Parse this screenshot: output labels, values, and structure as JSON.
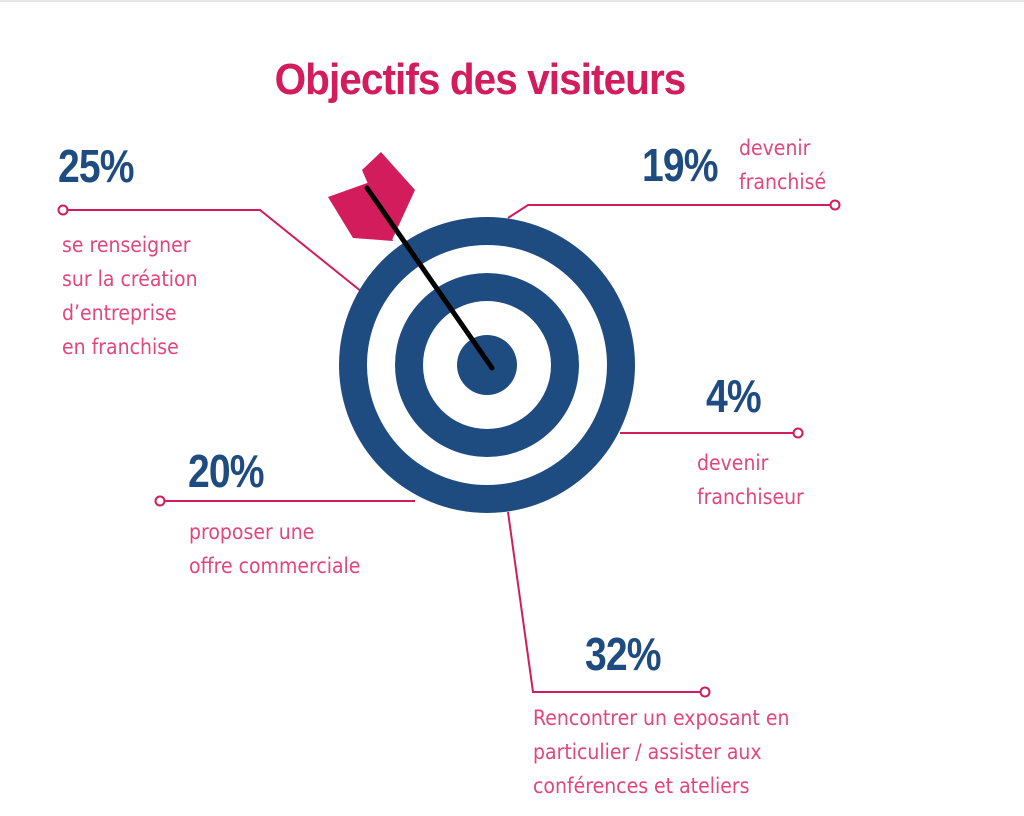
{
  "title": "Objectifs des visiteurs",
  "colors": {
    "accent": "#d21c5b",
    "navy": "#1f4c80",
    "arrow": "#000000",
    "text": "#e3467a"
  },
  "icons": {
    "target": "target-icon",
    "arrow": "arrow-icon"
  },
  "items": [
    {
      "id": "renseigner",
      "percent": "25%",
      "label": "se renseigner\nsur la création\nd’entreprise\nen franchise"
    },
    {
      "id": "franchise",
      "percent": "19%",
      "label": "devenir\nfranchisé"
    },
    {
      "id": "franchiseur",
      "percent": "4%",
      "label": "devenir\nfranchiseur"
    },
    {
      "id": "offre",
      "percent": "20%",
      "label": "proposer une\noffre commerciale"
    },
    {
      "id": "exposant",
      "percent": "32%",
      "label": "Rencontrer un exposant en\nparticulier / assister aux\nconférences et ateliers"
    }
  ]
}
